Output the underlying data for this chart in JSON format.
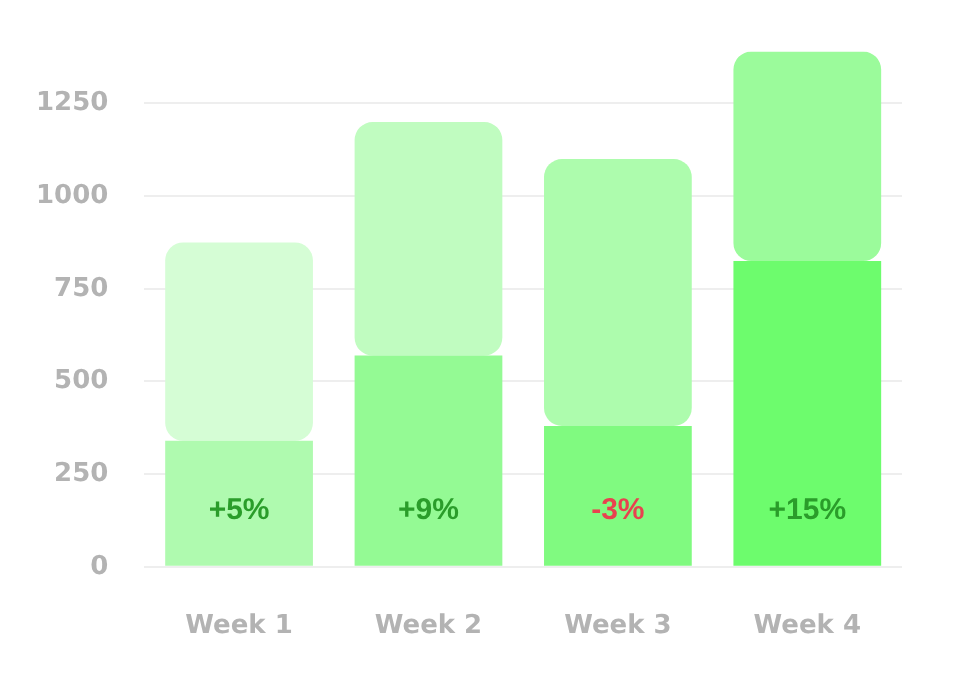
{
  "chart_data": {
    "type": "bar",
    "categories": [
      "Week 1",
      "Week 2",
      "Week 3",
      "Week 4"
    ],
    "stacked": true,
    "series": [
      {
        "colors": [
          "#affaaf",
          "#94fa94",
          "#80fa80",
          "#6dfc6d"
        ],
        "values": [
          340,
          570,
          380,
          825
        ]
      },
      {
        "colors": [
          "#d5fdd5",
          "#c0fcc0",
          "#adfcad",
          "#9bfb9b"
        ],
        "values": [
          535,
          630,
          720,
          565
        ]
      }
    ],
    "ylim": [
      0,
      1390
    ],
    "yticks": [
      0,
      250,
      500,
      750,
      1000,
      1250
    ],
    "grid": "y",
    "legend": false,
    "annotations": [
      "+5%",
      "+9%",
      "-3%",
      "+15%"
    ]
  }
}
